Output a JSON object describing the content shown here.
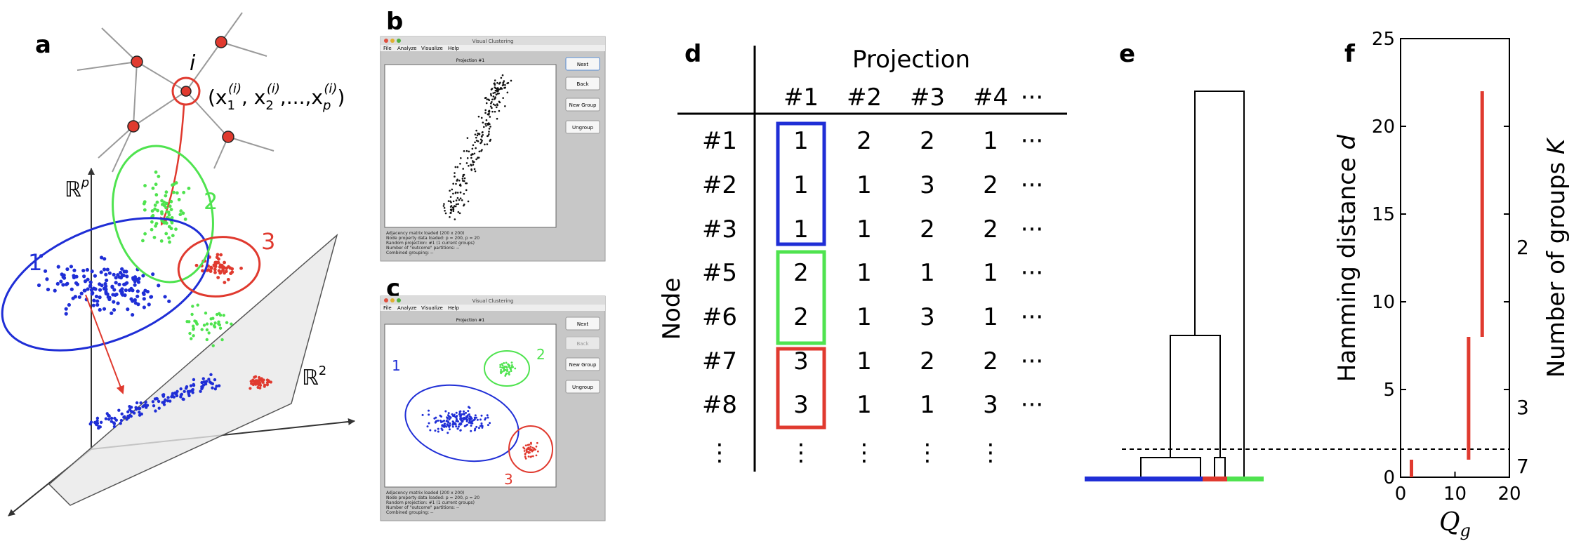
{
  "panels": {
    "a": {
      "label": "a",
      "node_label": "i",
      "vector_label": "(x1(i), x2(i),...,xp(i))",
      "vector": {
        "open": "(x",
        "s1": "1",
        "sep1": ", x",
        "s2": "2",
        "sep2": ",...,x",
        "sp": "p",
        "sup": "(i)",
        "close": ")"
      },
      "space_high": {
        "base": "ℝ",
        "exp": "p"
      },
      "space_low": {
        "base": "ℝ",
        "exp": "2"
      },
      "clusters": [
        {
          "label": "1",
          "color": "#1f2ed6"
        },
        {
          "label": "2",
          "color": "#4fe34f"
        },
        {
          "label": "3",
          "color": "#e03a2f"
        }
      ]
    },
    "b": {
      "label": "b",
      "window_title": "Visual Clustering",
      "menu": [
        "File",
        "Analyze",
        "Visualize",
        "Help"
      ],
      "plot_title": "Projection #1",
      "buttons": [
        "Next",
        "Back",
        "New Group",
        "Ungroup"
      ],
      "status_lines": [
        "Adjacency matrix loaded (200 x 200)",
        "Node property data loaded: p = 200, p = 20",
        "Random projection: #1 (1 current groups)",
        "Number of \"outcome\" partitions: --",
        "Combined grouping: --"
      ]
    },
    "c": {
      "label": "c",
      "window_title": "Visual Clustering",
      "menu": [
        "File",
        "Analyze",
        "Visualize",
        "Help"
      ],
      "plot_title": "Projection #1",
      "buttons": [
        "Next",
        "Back",
        "New Group",
        "Ungroup"
      ],
      "status_lines": [
        "Adjacency matrix loaded (200 x 200)",
        "Node property data loaded: p = 200, p = 20",
        "Random projection: #1 (1 current groups)",
        "Number of \"outcome\" partitions: --",
        "Combined grouping: --"
      ],
      "groups": [
        "1",
        "2",
        "3"
      ]
    },
    "d": {
      "label": "d",
      "col_title": "Projection",
      "row_title": "Node",
      "columns": [
        "#1",
        "#2",
        "#3",
        "#4",
        "···"
      ],
      "rows": [
        {
          "node": "#1",
          "values": [
            "1",
            "2",
            "2",
            "1",
            "···"
          ]
        },
        {
          "node": "#2",
          "values": [
            "1",
            "1",
            "3",
            "2",
            "···"
          ]
        },
        {
          "node": "#3",
          "values": [
            "1",
            "1",
            "2",
            "2",
            "···"
          ]
        },
        {
          "node": "#5",
          "values": [
            "2",
            "1",
            "1",
            "1",
            "···"
          ]
        },
        {
          "node": "#6",
          "values": [
            "2",
            "1",
            "3",
            "1",
            "···"
          ]
        },
        {
          "node": "#7",
          "values": [
            "3",
            "1",
            "2",
            "2",
            "···"
          ]
        },
        {
          "node": "#8",
          "values": [
            "3",
            "1",
            "1",
            "3",
            "···"
          ]
        },
        {
          "node": "⋮",
          "values": [
            "⋮",
            "⋮",
            "⋮",
            "⋮",
            ""
          ]
        }
      ],
      "box_colors": [
        "#1f2ed6",
        "#4fe34f",
        "#e03a2f"
      ]
    },
    "e": {
      "label": "e",
      "leaf_colors": [
        "#1f2ed6",
        "#e03a2f",
        "#4fe34f"
      ]
    },
    "f": {
      "label": "f",
      "ylabel": "Hamming distance d",
      "ylabel_parts": {
        "text": "Hamming distance ",
        "var": "d"
      },
      "xlabel_parts": {
        "main": "Q",
        "sub": "g"
      },
      "right_label_parts": {
        "text": "Number of groups ",
        "var": "K"
      },
      "right_ticks": [
        "2",
        "3",
        "7"
      ],
      "line_color": "#e03a2f"
    }
  },
  "chart_data": {
    "type": "line",
    "title": "",
    "xlabel": "Qg",
    "ylabel": "Hamming distance d",
    "xlim": [
      0,
      20
    ],
    "ylim": [
      0,
      25
    ],
    "xticks": [
      0,
      10,
      20
    ],
    "yticks": [
      0,
      5,
      10,
      15,
      20,
      25
    ],
    "segments": [
      {
        "x": 2,
        "y0": 0,
        "y1": 1,
        "K": "7"
      },
      {
        "x": 12.5,
        "y0": 1,
        "y1": 8,
        "K": "3"
      },
      {
        "x": 15,
        "y0": 8,
        "y1": 22,
        "K": "2"
      }
    ],
    "threshold_d": 1.5
  }
}
